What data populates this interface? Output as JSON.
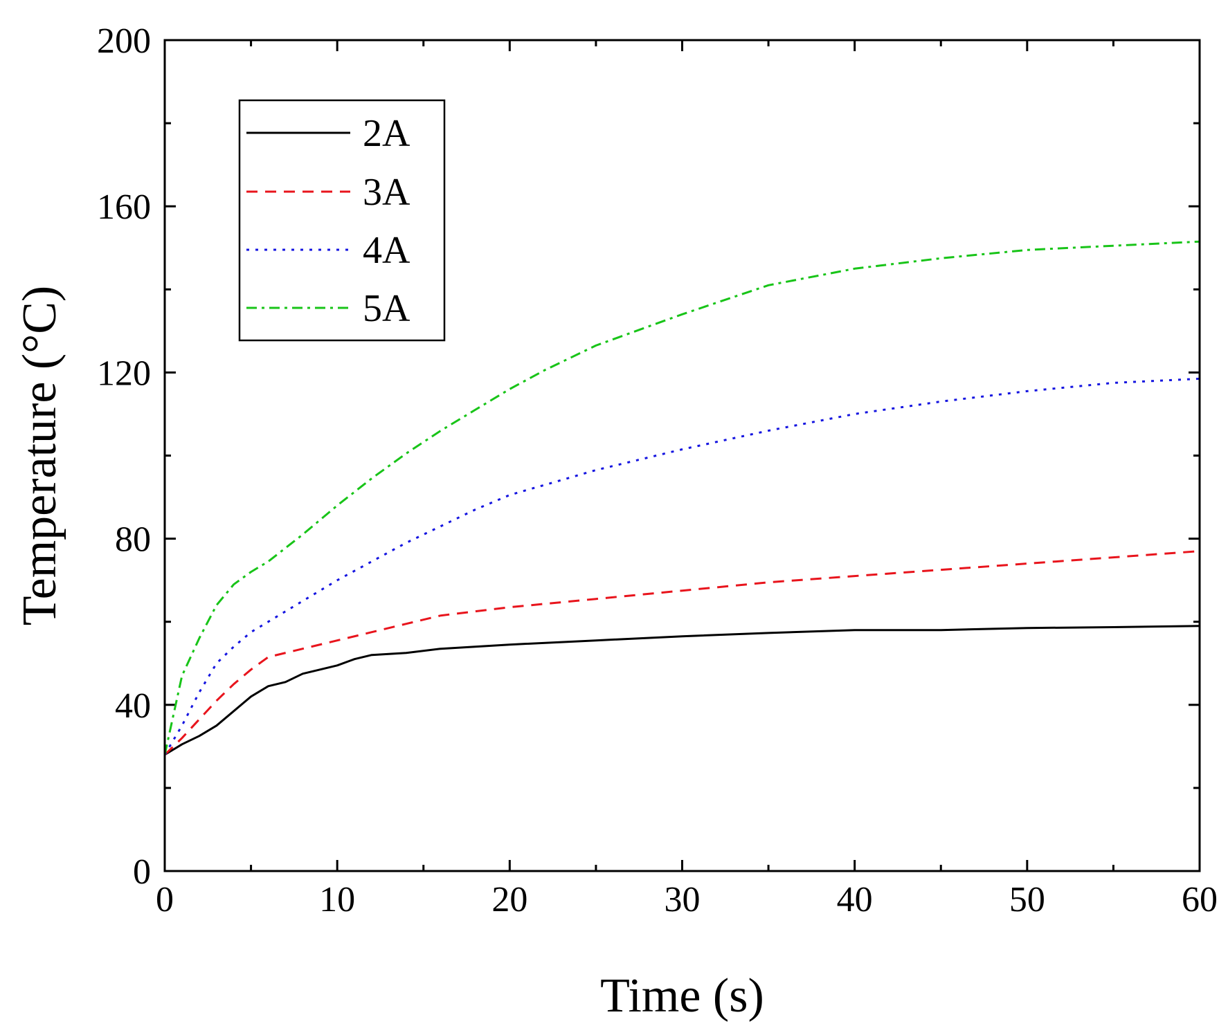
{
  "chart_data": {
    "type": "line",
    "title": "",
    "xlabel": "Time (s)",
    "ylabel": "Temperature (°C)",
    "xlim": [
      0,
      60
    ],
    "ylim": [
      0,
      200
    ],
    "xticks": [
      0,
      10,
      20,
      30,
      40,
      50,
      60
    ],
    "yticks": [
      0,
      40,
      80,
      120,
      160,
      200
    ],
    "xtick_labels": [
      "0",
      "10",
      "20",
      "30",
      "40",
      "50",
      "60"
    ],
    "ytick_labels": [
      "0",
      "40",
      "80",
      "120",
      "160",
      "200"
    ],
    "grid": false,
    "legend_position": "top-left",
    "series": [
      {
        "name": "2A",
        "color": "#000000",
        "dash": "solid",
        "x": [
          0,
          1,
          2,
          3,
          4,
          5,
          6,
          7,
          8,
          9,
          10,
          11,
          12,
          14,
          16,
          18,
          20,
          25,
          30,
          35,
          40,
          45,
          50,
          55,
          60
        ],
        "y": [
          28,
          30.5,
          32.5,
          35,
          38.5,
          42,
          44.5,
          45.5,
          47.5,
          48.5,
          49.5,
          51,
          52,
          52.5,
          53.5,
          54,
          54.5,
          55.5,
          56.5,
          57.3,
          58,
          58,
          58.5,
          58.7,
          59
        ]
      },
      {
        "name": "3A",
        "color": "#e8141c",
        "dash": "dashed",
        "x": [
          0,
          1,
          2,
          3,
          4,
          5,
          6,
          8,
          10,
          12,
          14,
          16,
          18,
          20,
          25,
          30,
          35,
          40,
          45,
          50,
          55,
          60
        ],
        "y": [
          28,
          32,
          36.5,
          41,
          45,
          48.5,
          51.5,
          53.5,
          55.5,
          57.5,
          59.5,
          61.5,
          62.5,
          63.5,
          65.5,
          67.5,
          69.5,
          71,
          72.5,
          74,
          75.5,
          77
        ]
      },
      {
        "name": "4A",
        "color": "#1515e0",
        "dash": "dotted",
        "x": [
          0,
          1,
          2,
          3,
          4,
          5,
          6,
          8,
          10,
          12,
          14,
          16,
          18,
          20,
          25,
          30,
          35,
          40,
          45,
          50,
          55,
          60
        ],
        "y": [
          28,
          35,
          43,
          50,
          54,
          57.5,
          60,
          65,
          70,
          74.5,
          79,
          83,
          87,
          90.5,
          96.5,
          101.5,
          106,
          110,
          113,
          115.5,
          117.5,
          118.5
        ]
      },
      {
        "name": "5A",
        "color": "#18c418",
        "dash": "dashdot",
        "x": [
          0,
          1,
          2,
          3,
          4,
          5,
          6,
          8,
          10,
          12,
          14,
          16,
          18,
          20,
          22,
          25,
          28,
          30,
          35,
          40,
          45,
          50,
          55,
          60
        ],
        "y": [
          28,
          47,
          56,
          64,
          69,
          72,
          74.5,
          81,
          88,
          94.5,
          100.5,
          106,
          111,
          116,
          120.5,
          126.5,
          131,
          134,
          141,
          145,
          147.5,
          149.5,
          150.5,
          151.5
        ]
      }
    ]
  }
}
